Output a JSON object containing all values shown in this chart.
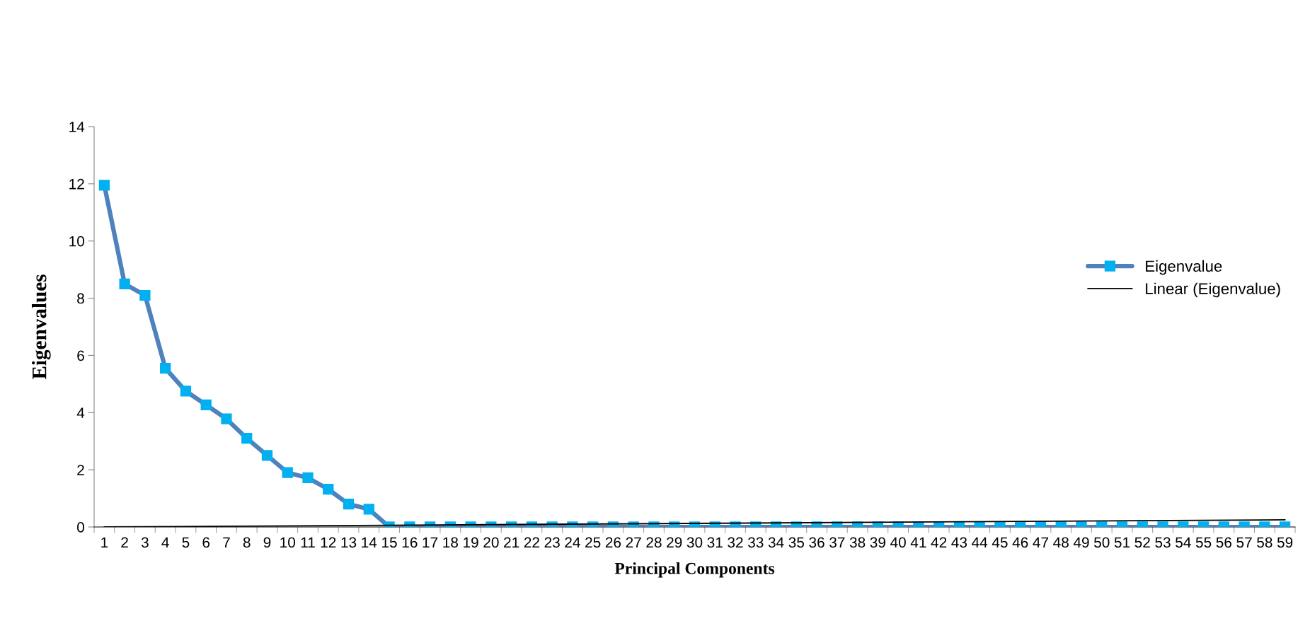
{
  "chart_data": {
    "type": "line",
    "xlabel": "Principal Components",
    "ylabel": "Eigenvalues",
    "categories": [
      "1",
      "2",
      "3",
      "4",
      "5",
      "6",
      "7",
      "8",
      "9",
      "10",
      "11",
      "12",
      "13",
      "14",
      "15",
      "16",
      "17",
      "18",
      "19",
      "20",
      "21",
      "22",
      "23",
      "24",
      "25",
      "26",
      "27",
      "28",
      "29",
      "30",
      "31",
      "32",
      "33",
      "34",
      "35",
      "36",
      "37",
      "38",
      "39",
      "40",
      "41",
      "42",
      "43",
      "44",
      "45",
      "46",
      "47",
      "48",
      "49",
      "50",
      "51",
      "52",
      "53",
      "54",
      "55",
      "56",
      "57",
      "58",
      "59"
    ],
    "series": [
      {
        "name": "Eigenvalue",
        "color": "#4f81bd",
        "marker": "square",
        "values": [
          11.95,
          8.5,
          8.1,
          5.55,
          4.75,
          4.27,
          3.78,
          3.1,
          2.5,
          1.9,
          1.72,
          1.32,
          0.8,
          0.62,
          0,
          0,
          0,
          0,
          0,
          0,
          0,
          0,
          0,
          0,
          0,
          0,
          0,
          0,
          0,
          0,
          0,
          0,
          0,
          0,
          0,
          0,
          0,
          0,
          0,
          0,
          0,
          0,
          0,
          0,
          0,
          0,
          0,
          0,
          0,
          0,
          0,
          0,
          0,
          0,
          0,
          0,
          0,
          0,
          0
        ]
      },
      {
        "name": "Linear (Eigenvalue)",
        "color": "#000000",
        "x": [
          "1",
          "59"
        ],
        "values": [
          0,
          0.25
        ]
      }
    ],
    "ylim": [
      0,
      14
    ],
    "yticks": [
      0,
      2,
      4,
      6,
      8,
      10,
      12,
      14
    ],
    "grid": false,
    "legend": "right"
  }
}
